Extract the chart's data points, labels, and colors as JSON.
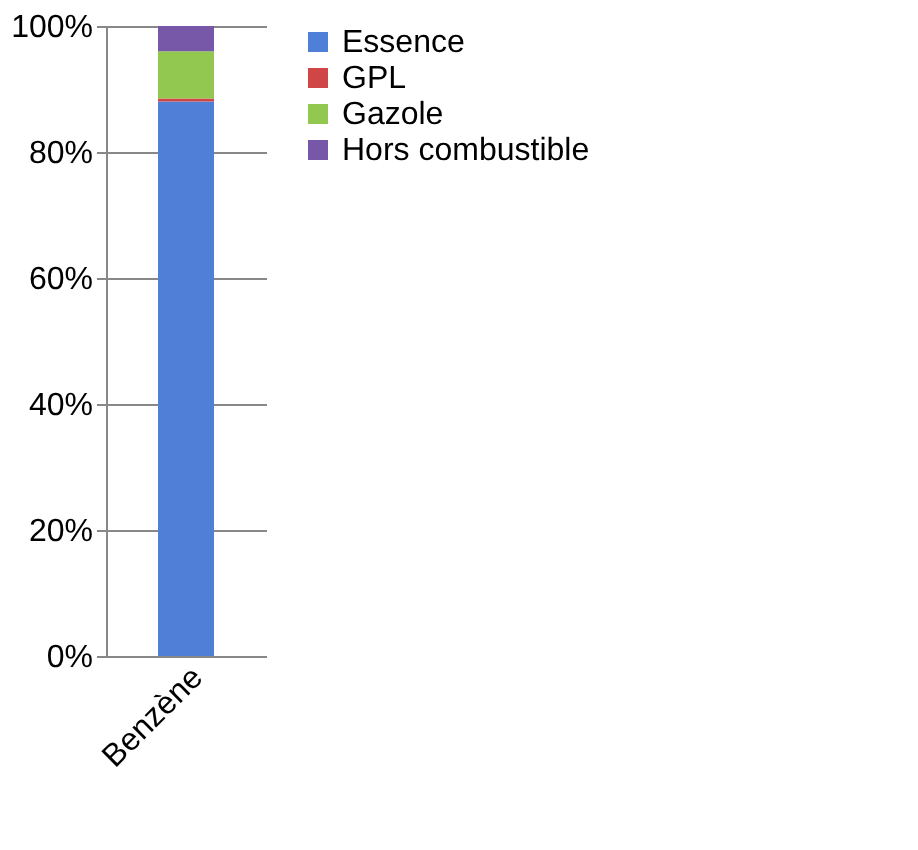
{
  "chart_data": {
    "type": "bar",
    "stacked": true,
    "categories": [
      "Benzène"
    ],
    "series": [
      {
        "name": "Essence",
        "color": "#4f7fd6",
        "values": [
          88
        ]
      },
      {
        "name": "GPL",
        "color": "#d04545",
        "values": [
          0.5
        ]
      },
      {
        "name": "Gazole",
        "color": "#92c850",
        "values": [
          7.5
        ]
      },
      {
        "name": "Hors combustible",
        "color": "#7657a8",
        "values": [
          4
        ]
      }
    ],
    "ylim": [
      0,
      100
    ],
    "yticks": [
      {
        "value": 0,
        "label": "0%"
      },
      {
        "value": 20,
        "label": "20%"
      },
      {
        "value": 40,
        "label": "40%"
      },
      {
        "value": 60,
        "label": "60%"
      },
      {
        "value": 80,
        "label": "80%"
      },
      {
        "value": 100,
        "label": "100%"
      }
    ],
    "grid": "y",
    "legend": "right"
  }
}
